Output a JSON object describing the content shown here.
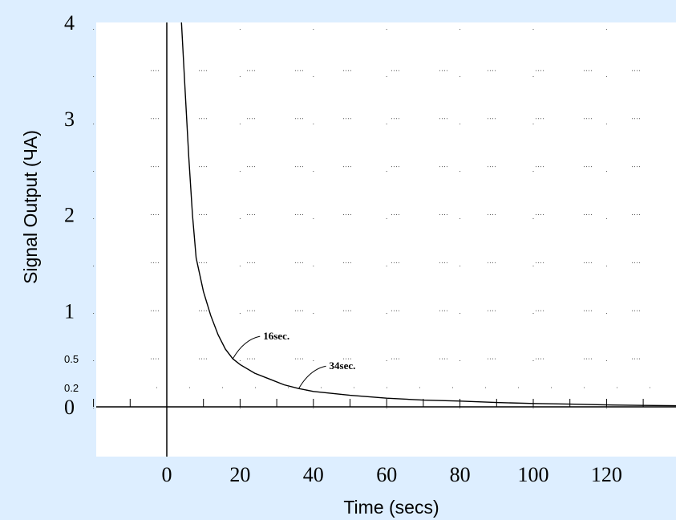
{
  "chart_data": {
    "type": "line",
    "xlabel": "Time (secs)",
    "ylabel": "Signal Output (ЧA)",
    "xlim": [
      -20,
      140
    ],
    "ylim": [
      -0.5,
      4
    ],
    "x_ticks": [
      "0",
      "20",
      "40",
      "60",
      "80",
      "100",
      "120"
    ],
    "y_ticks": [
      "4",
      "3",
      "2",
      "1",
      "0.5",
      "0.2",
      "0"
    ],
    "grid": true,
    "series": [
      {
        "x": [
          4,
          5,
          6,
          7,
          8,
          10,
          12,
          14,
          16,
          18,
          20,
          24,
          28,
          32,
          36,
          40,
          50,
          60,
          70,
          80,
          90,
          100,
          110,
          120,
          130,
          140
        ],
        "y": [
          4.0,
          3.3,
          2.6,
          2.0,
          1.55,
          1.2,
          0.95,
          0.75,
          0.6,
          0.5,
          0.44,
          0.35,
          0.29,
          0.23,
          0.19,
          0.16,
          0.12,
          0.09,
          0.07,
          0.06,
          0.045,
          0.035,
          0.028,
          0.02,
          0.015,
          0.012
        ]
      }
    ],
    "annotations": [
      {
        "text": "16sec.",
        "x": 18,
        "y": 0.5
      },
      {
        "text": "34sec.",
        "x": 36,
        "y": 0.19
      }
    ],
    "colors": {
      "background": "#ddeeff",
      "plot": "#ffffff",
      "line": "#000000"
    }
  }
}
